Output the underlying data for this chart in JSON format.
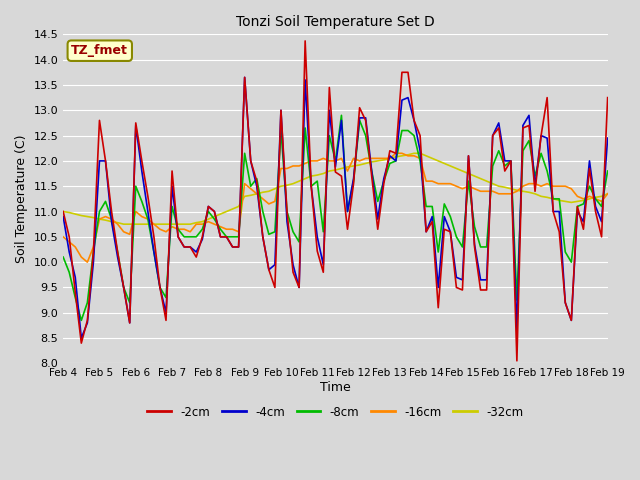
{
  "title": "Tonzi Soil Temperature Set D",
  "xlabel": "Time",
  "ylabel": "Soil Temperature (C)",
  "ylim": [
    8.0,
    14.5
  ],
  "legend_label": "TZ_fmet",
  "series_labels": [
    "-2cm",
    "-4cm",
    "-8cm",
    "-16cm",
    "-32cm"
  ],
  "series_colors": [
    "#cc0000",
    "#0000cc",
    "#00bb00",
    "#ff8800",
    "#cccc00"
  ],
  "x_tick_labels": [
    "Feb 4",
    "Feb 5",
    "Feb 6",
    "Feb 7",
    "Feb 8",
    "Feb 9",
    "Feb 10",
    "Feb 11",
    "Feb 12",
    "Feb 13",
    "Feb 14",
    "Feb 15",
    "Feb 16",
    "Feb 17",
    "Feb 18",
    "Feb 19"
  ],
  "background_color": "#d8d8d8",
  "plot_bg_color": "#d8d8d8",
  "grid_color": "#ffffff",
  "annotation_bg": "#ffffcc",
  "annotation_border": "#888800",
  "annotation_text_color": "#990000",
  "t2cm": [
    11.0,
    10.5,
    9.4,
    8.4,
    8.85,
    10.2,
    12.8,
    12.0,
    11.0,
    10.2,
    9.5,
    8.8,
    12.75,
    12.0,
    11.3,
    10.5,
    9.5,
    8.85,
    11.8,
    10.5,
    10.3,
    10.3,
    10.1,
    10.5,
    11.1,
    11.0,
    10.5,
    10.5,
    10.3,
    10.3,
    13.65,
    12.0,
    11.6,
    10.5,
    9.85,
    9.5,
    13.0,
    11.0,
    9.8,
    9.5,
    14.37,
    11.5,
    10.22,
    9.8,
    13.45,
    11.78,
    11.7,
    10.65,
    11.55,
    13.05,
    12.8,
    11.7,
    10.65,
    11.55,
    12.2,
    12.15,
    13.75,
    13.75,
    12.8,
    12.5,
    10.6,
    10.8,
    9.1,
    10.65,
    10.6,
    9.5,
    9.45,
    12.1,
    10.3,
    9.45,
    9.45,
    12.5,
    12.65,
    11.8,
    12.0,
    8.05,
    12.65,
    12.7,
    11.4,
    12.5,
    13.25,
    11.0,
    10.6,
    9.2,
    8.85,
    11.1,
    10.65,
    11.85,
    11.0,
    10.5,
    13.25
  ],
  "t4cm": [
    10.9,
    10.2,
    9.7,
    8.5,
    8.8,
    10.0,
    12.0,
    12.0,
    10.8,
    10.1,
    9.5,
    8.8,
    12.7,
    11.8,
    11.0,
    10.2,
    9.5,
    9.0,
    11.5,
    10.5,
    10.3,
    10.3,
    10.2,
    10.45,
    11.1,
    11.0,
    10.5,
    10.5,
    10.3,
    10.3,
    13.65,
    12.0,
    11.5,
    10.5,
    9.85,
    9.95,
    13.0,
    10.8,
    9.95,
    9.5,
    13.6,
    11.5,
    10.5,
    9.95,
    13.0,
    11.88,
    12.8,
    11.0,
    11.65,
    12.85,
    12.85,
    11.8,
    10.85,
    11.65,
    12.1,
    12.0,
    13.2,
    13.25,
    12.8,
    12.2,
    10.6,
    10.9,
    9.5,
    10.9,
    10.6,
    9.7,
    9.65,
    12.1,
    10.35,
    9.65,
    9.65,
    12.5,
    12.75,
    12.0,
    12.0,
    8.65,
    12.7,
    12.9,
    11.5,
    12.5,
    12.45,
    11.0,
    11.0,
    9.2,
    8.85,
    11.0,
    10.8,
    12.0,
    11.1,
    10.8,
    12.45
  ],
  "t8cm": [
    10.1,
    9.8,
    9.3,
    8.85,
    9.2,
    10.2,
    11.0,
    11.2,
    10.85,
    10.2,
    9.5,
    9.2,
    11.5,
    11.2,
    10.85,
    10.2,
    9.5,
    9.3,
    11.1,
    10.65,
    10.5,
    10.5,
    10.5,
    10.65,
    11.0,
    10.85,
    10.65,
    10.5,
    10.5,
    10.5,
    12.15,
    11.5,
    11.65,
    11.0,
    10.55,
    10.6,
    12.6,
    11.0,
    10.6,
    10.4,
    12.65,
    11.5,
    11.6,
    10.6,
    12.5,
    12.0,
    12.9,
    11.0,
    11.6,
    12.8,
    12.5,
    11.8,
    11.2,
    11.6,
    11.95,
    12.0,
    12.6,
    12.6,
    12.5,
    12.0,
    11.1,
    11.1,
    10.2,
    11.15,
    10.9,
    10.5,
    10.3,
    11.6,
    10.7,
    10.3,
    10.3,
    11.9,
    12.2,
    11.9,
    12.0,
    9.25,
    12.2,
    12.4,
    11.7,
    12.15,
    11.8,
    11.25,
    11.25,
    10.2,
    10.0,
    11.1,
    11.15,
    11.5,
    11.25,
    11.1,
    11.8
  ],
  "t16cm": [
    10.5,
    10.4,
    10.3,
    10.1,
    10.0,
    10.3,
    10.85,
    10.9,
    10.85,
    10.75,
    10.6,
    10.55,
    11.0,
    10.9,
    10.85,
    10.75,
    10.65,
    10.6,
    10.7,
    10.65,
    10.65,
    10.6,
    10.75,
    10.75,
    10.8,
    10.75,
    10.7,
    10.65,
    10.65,
    10.6,
    11.55,
    11.45,
    11.35,
    11.25,
    11.15,
    11.2,
    11.85,
    11.85,
    11.9,
    11.9,
    11.95,
    12.0,
    12.0,
    12.05,
    12.0,
    12.0,
    12.05,
    11.8,
    12.05,
    12.0,
    12.05,
    12.05,
    12.05,
    12.05,
    12.05,
    12.15,
    12.15,
    12.1,
    12.1,
    12.05,
    11.6,
    11.6,
    11.55,
    11.55,
    11.55,
    11.5,
    11.45,
    11.5,
    11.45,
    11.4,
    11.4,
    11.4,
    11.35,
    11.35,
    11.35,
    11.4,
    11.5,
    11.55,
    11.55,
    11.5,
    11.55,
    11.5,
    11.5,
    11.5,
    11.45,
    11.3,
    11.25,
    11.3,
    11.25,
    11.2,
    11.35
  ],
  "t32cm": [
    11.0,
    10.98,
    10.95,
    10.92,
    10.9,
    10.88,
    10.85,
    10.83,
    10.8,
    10.78,
    10.75,
    10.75,
    10.75,
    10.75,
    10.75,
    10.75,
    10.75,
    10.75,
    10.75,
    10.75,
    10.75,
    10.75,
    10.78,
    10.8,
    10.85,
    10.9,
    10.95,
    11.0,
    11.05,
    11.1,
    11.3,
    11.32,
    11.35,
    11.38,
    11.4,
    11.45,
    11.5,
    11.52,
    11.55,
    11.6,
    11.65,
    11.7,
    11.72,
    11.75,
    11.8,
    11.82,
    11.85,
    11.88,
    11.9,
    11.92,
    11.95,
    11.98,
    12.0,
    12.02,
    12.05,
    12.08,
    12.1,
    12.12,
    12.15,
    12.15,
    12.1,
    12.05,
    12.0,
    11.95,
    11.9,
    11.85,
    11.8,
    11.75,
    11.7,
    11.65,
    11.6,
    11.55,
    11.5,
    11.48,
    11.45,
    11.42,
    11.4,
    11.38,
    11.35,
    11.3,
    11.28,
    11.25,
    11.22,
    11.2,
    11.18,
    11.2,
    11.22,
    11.25,
    11.28,
    11.3,
    11.35
  ]
}
